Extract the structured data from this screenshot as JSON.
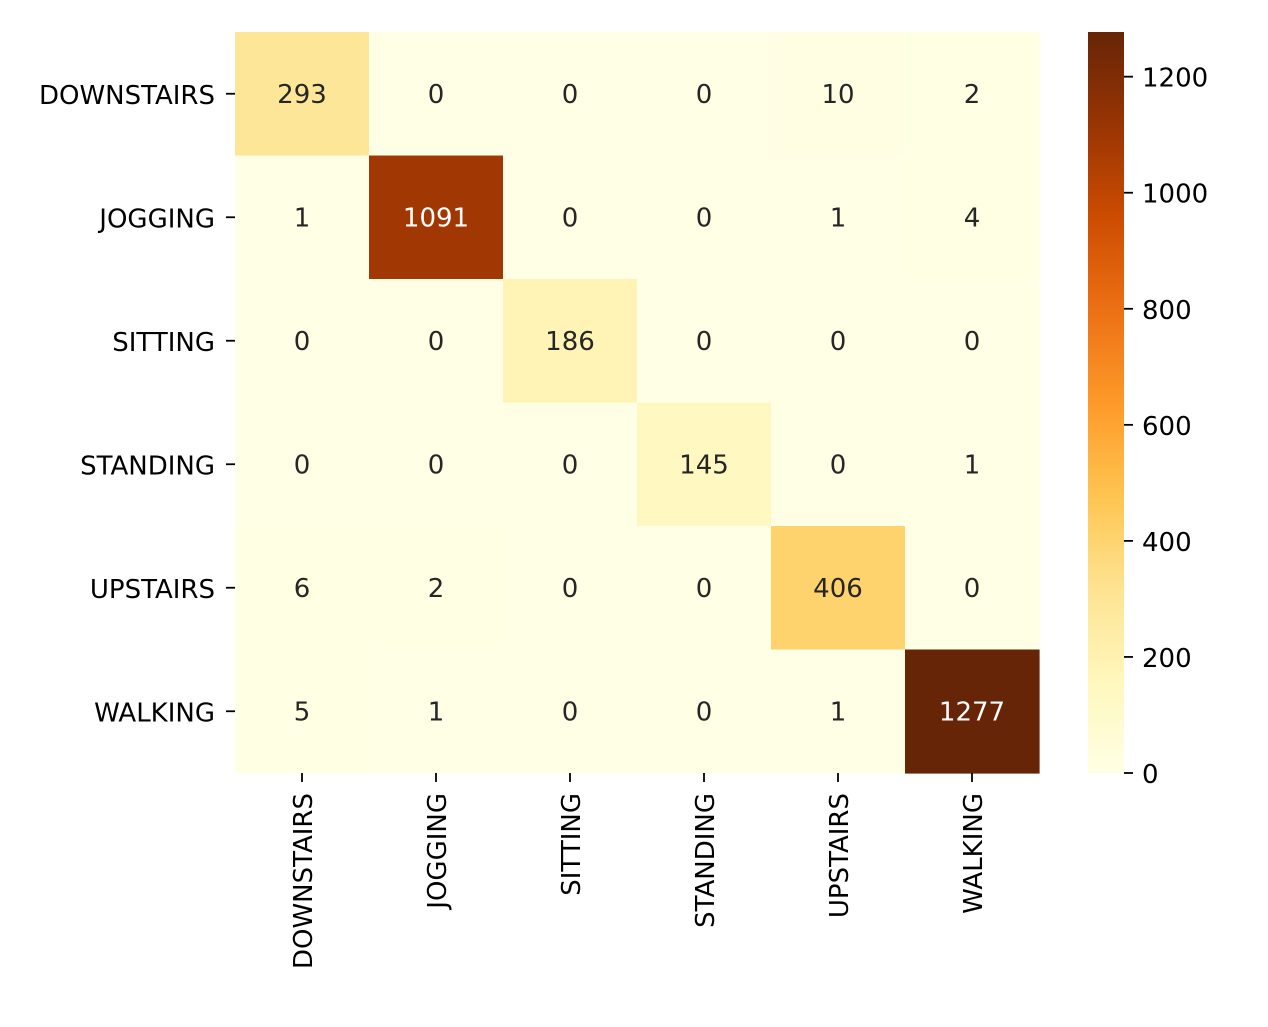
{
  "chart_data": {
    "type": "heatmap",
    "title": "",
    "xlabel": "",
    "ylabel": "",
    "row_labels": [
      "DOWNSTAIRS",
      "JOGGING",
      "SITTING",
      "STANDING",
      "UPSTAIRS",
      "WALKING"
    ],
    "col_labels": [
      "DOWNSTAIRS",
      "JOGGING",
      "SITTING",
      "STANDING",
      "UPSTAIRS",
      "WALKING"
    ],
    "values": [
      [
        293,
        0,
        0,
        0,
        10,
        2
      ],
      [
        1,
        1091,
        0,
        0,
        1,
        4
      ],
      [
        0,
        0,
        186,
        0,
        0,
        0
      ],
      [
        0,
        0,
        0,
        145,
        0,
        1
      ],
      [
        6,
        2,
        0,
        0,
        406,
        0
      ],
      [
        5,
        1,
        0,
        0,
        1,
        1277
      ]
    ],
    "colormap": "YlOrBr",
    "vmin": 0,
    "vmax": 1277,
    "colorbar_ticks": [
      0,
      200,
      400,
      600,
      800,
      1000,
      1200
    ],
    "annotations": true,
    "grid": false
  }
}
